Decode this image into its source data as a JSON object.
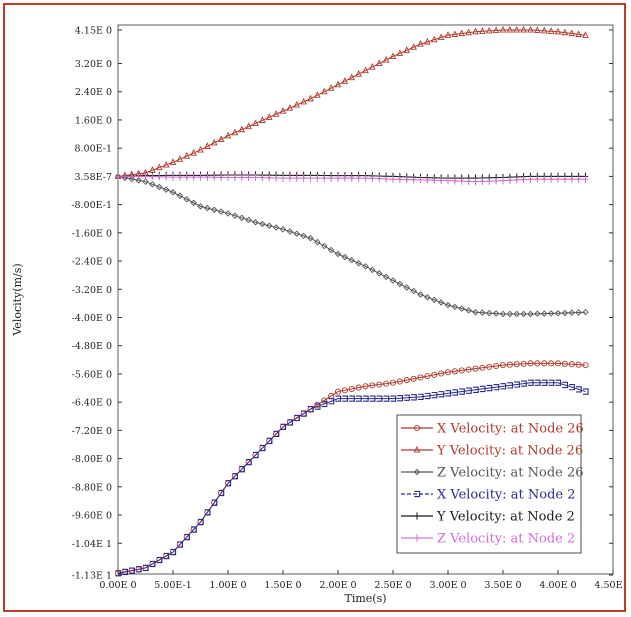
{
  "chart_data": {
    "type": "line",
    "title": "",
    "xlabel": "Time(s)",
    "ylabel": "Velocity(m/s)",
    "xlim": [
      0,
      4.5
    ],
    "ylim": [
      -11.3,
      4.15
    ],
    "x_ticks": [
      0,
      0.5,
      1.0,
      1.5,
      2.0,
      2.5,
      3.0,
      3.5,
      4.0,
      4.5
    ],
    "x_tick_labels": [
      "0.00E 0",
      "5.00E-1",
      "1.00E 0",
      "1.50E 0",
      "2.00E 0",
      "2.50E 0",
      "3.00E 0",
      "3.50E 0",
      "4.00E 0",
      "4.50E 0"
    ],
    "y_ticks": [
      4.15,
      3.2,
      2.4,
      1.6,
      0.8,
      0.0,
      -0.8,
      -1.6,
      -2.4,
      -3.2,
      -4.0,
      -4.8,
      -5.6,
      -6.4,
      -7.2,
      -8.0,
      -8.8,
      -9.6,
      -10.4,
      -11.3
    ],
    "y_tick_labels": [
      "4.15E 0",
      "3.20E 0",
      "2.40E 0",
      "1.60E 0",
      "8.00E-1",
      "3.58E-7",
      "-8.00E-1",
      "-1.60E 0",
      "-2.40E 0",
      "-3.20E 0",
      "-4.00E 0",
      "-4.80E 0",
      "-5.60E 0",
      "-6.40E 0",
      "-7.20E 0",
      "-8.00E 0",
      "-8.80E 0",
      "-9.60E 0",
      "-1.04E 1",
      "-1.13E 1"
    ],
    "grid": false,
    "legend_position": "bottom-right",
    "series": [
      {
        "name": "X Velocity: at Node 26",
        "color": "#b03a2e",
        "marker": "circle",
        "legend_dash": "",
        "x": [
          0,
          0.25,
          0.5,
          0.75,
          1.0,
          1.25,
          1.5,
          1.75,
          2.0,
          2.25,
          2.5,
          2.75,
          3.0,
          3.25,
          3.5,
          3.75,
          4.0,
          4.25
        ],
        "y": [
          -11.25,
          -11.1,
          -10.65,
          -9.8,
          -8.7,
          -7.9,
          -7.1,
          -6.6,
          -6.1,
          -5.95,
          -5.85,
          -5.7,
          -5.55,
          -5.45,
          -5.35,
          -5.3,
          -5.3,
          -5.35
        ]
      },
      {
        "name": "Y Velocity: at Node 26",
        "color": "#b03a2e",
        "marker": "triangle",
        "legend_dash": "",
        "x": [
          0,
          0.25,
          0.5,
          0.75,
          1.0,
          1.25,
          1.5,
          1.75,
          2.0,
          2.25,
          2.5,
          2.75,
          3.0,
          3.25,
          3.5,
          3.75,
          4.0,
          4.25
        ],
        "y": [
          0.0,
          0.1,
          0.4,
          0.75,
          1.15,
          1.5,
          1.85,
          2.2,
          2.6,
          3.0,
          3.4,
          3.75,
          4.0,
          4.1,
          4.15,
          4.15,
          4.1,
          4.0
        ]
      },
      {
        "name": "Z Velocity: at Node 26",
        "color": "#555555",
        "marker": "diamond",
        "legend_dash": "",
        "x": [
          0,
          0.25,
          0.5,
          0.75,
          1.0,
          1.25,
          1.5,
          1.75,
          2.0,
          2.25,
          2.5,
          2.75,
          3.0,
          3.25,
          3.5,
          3.75,
          4.0,
          4.25
        ],
        "y": [
          0.0,
          -0.15,
          -0.45,
          -0.85,
          -1.05,
          -1.3,
          -1.5,
          -1.75,
          -2.2,
          -2.55,
          -2.95,
          -3.35,
          -3.65,
          -3.85,
          -3.9,
          -3.9,
          -3.88,
          -3.85
        ]
      },
      {
        "name": "X Velocity: at Node 2",
        "color": "#2a2a8a",
        "marker": "square",
        "legend_dash": "4,2",
        "x": [
          0,
          0.25,
          0.5,
          0.75,
          1.0,
          1.25,
          1.5,
          1.75,
          2.0,
          2.25,
          2.5,
          2.75,
          3.0,
          3.25,
          3.5,
          3.75,
          4.0,
          4.25
        ],
        "y": [
          -11.25,
          -11.1,
          -10.65,
          -9.8,
          -8.7,
          -7.9,
          -7.1,
          -6.6,
          -6.3,
          -6.3,
          -6.3,
          -6.25,
          -6.15,
          -6.05,
          -5.95,
          -5.85,
          -5.85,
          -6.1
        ]
      },
      {
        "name": "Y Velocity: at Node 2",
        "color": "#1a1a1a",
        "marker": "plus",
        "legend_dash": "",
        "x": [
          0,
          0.25,
          0.5,
          0.75,
          1.0,
          1.25,
          1.5,
          1.75,
          2.0,
          2.25,
          2.5,
          2.75,
          3.0,
          3.25,
          3.5,
          3.75,
          4.0,
          4.25
        ],
        "y": [
          0.0,
          0.02,
          0.03,
          0.03,
          0.04,
          0.04,
          0.03,
          0.03,
          0.02,
          0.02,
          0.0,
          -0.03,
          -0.05,
          -0.05,
          -0.03,
          0.0,
          0.0,
          0.0
        ]
      },
      {
        "name": "Z Velocity: at Node 2",
        "color": "#d070d0",
        "marker": "plus",
        "legend_dash": "",
        "x": [
          0,
          0.25,
          0.5,
          0.75,
          1.0,
          1.25,
          1.5,
          1.75,
          2.0,
          2.25,
          2.5,
          2.75,
          3.0,
          3.25,
          3.5,
          3.75,
          4.0,
          4.25
        ],
        "y": [
          0.0,
          0.0,
          -0.02,
          -0.02,
          -0.03,
          -0.03,
          -0.05,
          -0.05,
          -0.05,
          -0.05,
          -0.08,
          -0.1,
          -0.12,
          -0.15,
          -0.12,
          -0.08,
          -0.08,
          -0.08
        ]
      }
    ]
  }
}
